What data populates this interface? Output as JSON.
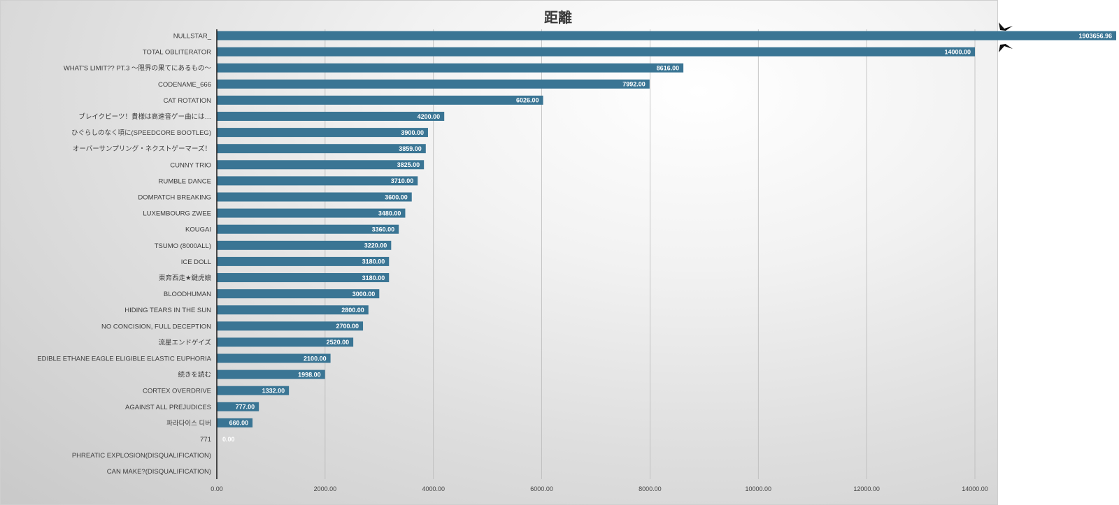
{
  "colors": {
    "bar": "#3a7594",
    "break_mark": "#111111"
  },
  "chart_data": {
    "type": "bar",
    "orientation": "horizontal",
    "title": "距離",
    "xlabel": "",
    "ylabel": "",
    "xlim": [
      0,
      14000
    ],
    "grid": true,
    "x_ticks": [
      "0.00",
      "2000.00",
      "4000.00",
      "6000.00",
      "8000.00",
      "10000.00",
      "12000.00",
      "14000.00"
    ],
    "categories": [
      "NULLSTAR_",
      "TOTAL OBLITERATOR",
      "WHAT'S LIMIT?? PT.3 〜限界の果てにあるもの〜",
      "CODENAME_666",
      "CAT ROTATION",
      "ブレイクビーツ！貴様は高速音ゲー曲には…",
      "ひぐらしのなく頃に(SPEEDCORE BOOTLEG)",
      "オーバーサンプリング・ネクストゲーマーズ！",
      "CUNNY TRIO",
      "RUMBLE DANCE",
      "DOMPATCH BREAKING",
      "LUXEMBOURG ZWEE",
      "KOUGAI",
      "TSUMO (8000ALL)",
      "ICE DOLL",
      "東奔西走★鍵虎娘",
      "BLOODHUMAN",
      "HIDING TEARS IN THE SUN",
      "NO CONCISION, FULL DECEPTION",
      "流星エンドゲイズ",
      "EDIBLE ETHANE EAGLE ELIGIBLE ELASTIC EUPHORIA",
      "続きを読む",
      "CORTEX OVERDRIVE",
      "AGAINST ALL PREJUDICES",
      "파라다이스 디버",
      "771",
      "PHREATIC EXPLOSION(DISQUALIFICATION)",
      "CAN MAKE?(DISQUALIFICATION)"
    ],
    "values": [
      1903656.96,
      14000,
      8616,
      7992,
      6026,
      4200,
      3900,
      3859,
      3825,
      3710,
      3600,
      3480,
      3360,
      3220,
      3180,
      3180,
      3000,
      2800,
      2700,
      2520,
      2100,
      1998,
      1332,
      777,
      660,
      0,
      null,
      null
    ],
    "data_labels": [
      "1903656.96",
      "14000.00",
      "8616.00",
      "7992.00",
      "6026.00",
      "4200.00",
      "3900.00",
      "3859.00",
      "3825.00",
      "3710.00",
      "3600.00",
      "3480.00",
      "3360.00",
      "3220.00",
      "3180.00",
      "3180.00",
      "3000.00",
      "2800.00",
      "2700.00",
      "2520.00",
      "2100.00",
      "1998.00",
      "1332.00",
      "777.00",
      "660.00",
      "0.00",
      "",
      ""
    ],
    "axis_break_on_first_bar": true
  }
}
